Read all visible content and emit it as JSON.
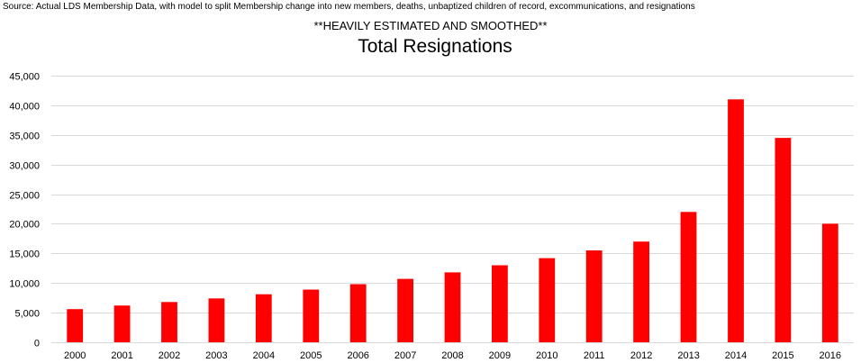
{
  "colors": {
    "bar": "#ff0000",
    "grid": "#d9d9d9",
    "axis": "#d9d9d9",
    "background": "#ffffff"
  },
  "chart_data": {
    "type": "bar",
    "source_note": "Source: Actual LDS Membership Data, with model to split Membership change into new members, deaths, unbaptized children of record, excommunications, and resignations",
    "subtitle": "**HEAVILY ESTIMATED AND SMOOTHED**",
    "title": "Total Resignations",
    "xlabel": "",
    "ylabel": "",
    "categories": [
      "2000",
      "2001",
      "2002",
      "2003",
      "2004",
      "2005",
      "2006",
      "2007",
      "2008",
      "2009",
      "2010",
      "2011",
      "2012",
      "2013",
      "2014",
      "2015",
      "2016"
    ],
    "values": [
      5600,
      6200,
      6800,
      7400,
      8100,
      8900,
      9800,
      10700,
      11800,
      13000,
      14200,
      15500,
      17000,
      22000,
      41000,
      34500,
      20000
    ],
    "ylim": [
      0,
      45000
    ],
    "yticks": [
      0,
      5000,
      10000,
      15000,
      20000,
      25000,
      30000,
      35000,
      40000,
      45000
    ],
    "ytick_labels": [
      "0",
      "5,000",
      "10,000",
      "15,000",
      "20,000",
      "25,000",
      "30,000",
      "35,000",
      "40,000",
      "45,000"
    ],
    "grid": true,
    "legend": "none"
  }
}
